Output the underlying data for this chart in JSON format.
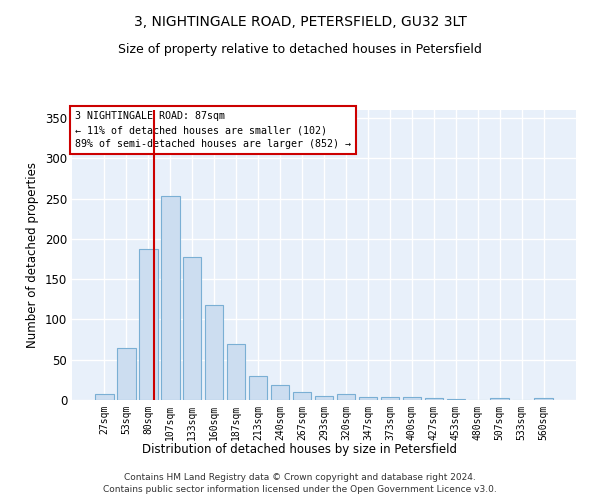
{
  "title": "3, NIGHTINGALE ROAD, PETERSFIELD, GU32 3LT",
  "subtitle": "Size of property relative to detached houses in Petersfield",
  "xlabel": "Distribution of detached houses by size in Petersfield",
  "ylabel": "Number of detached properties",
  "bar_color": "#ccddf0",
  "bar_edge_color": "#7aafd4",
  "background_color": "#e8f0fa",
  "grid_color": "#ffffff",
  "categories": [
    "27sqm",
    "53sqm",
    "80sqm",
    "107sqm",
    "133sqm",
    "160sqm",
    "187sqm",
    "213sqm",
    "240sqm",
    "267sqm",
    "293sqm",
    "320sqm",
    "347sqm",
    "373sqm",
    "400sqm",
    "427sqm",
    "453sqm",
    "480sqm",
    "507sqm",
    "533sqm",
    "560sqm"
  ],
  "values": [
    7,
    65,
    187,
    253,
    177,
    118,
    69,
    30,
    19,
    10,
    5,
    8,
    4,
    4,
    4,
    2,
    1,
    0,
    2,
    0,
    2
  ],
  "marker_bin_index": 2,
  "marker_color": "#cc0000",
  "ylim": [
    0,
    360
  ],
  "yticks": [
    0,
    50,
    100,
    150,
    200,
    250,
    300,
    350
  ],
  "annotation_line1": "3 NIGHTINGALE ROAD: 87sqm",
  "annotation_line2": "← 11% of detached houses are smaller (102)",
  "annotation_line3": "89% of semi-detached houses are larger (852) →",
  "footnote1": "Contains HM Land Registry data © Crown copyright and database right 2024.",
  "footnote2": "Contains public sector information licensed under the Open Government Licence v3.0.",
  "title_fontsize": 10,
  "subtitle_fontsize": 9
}
